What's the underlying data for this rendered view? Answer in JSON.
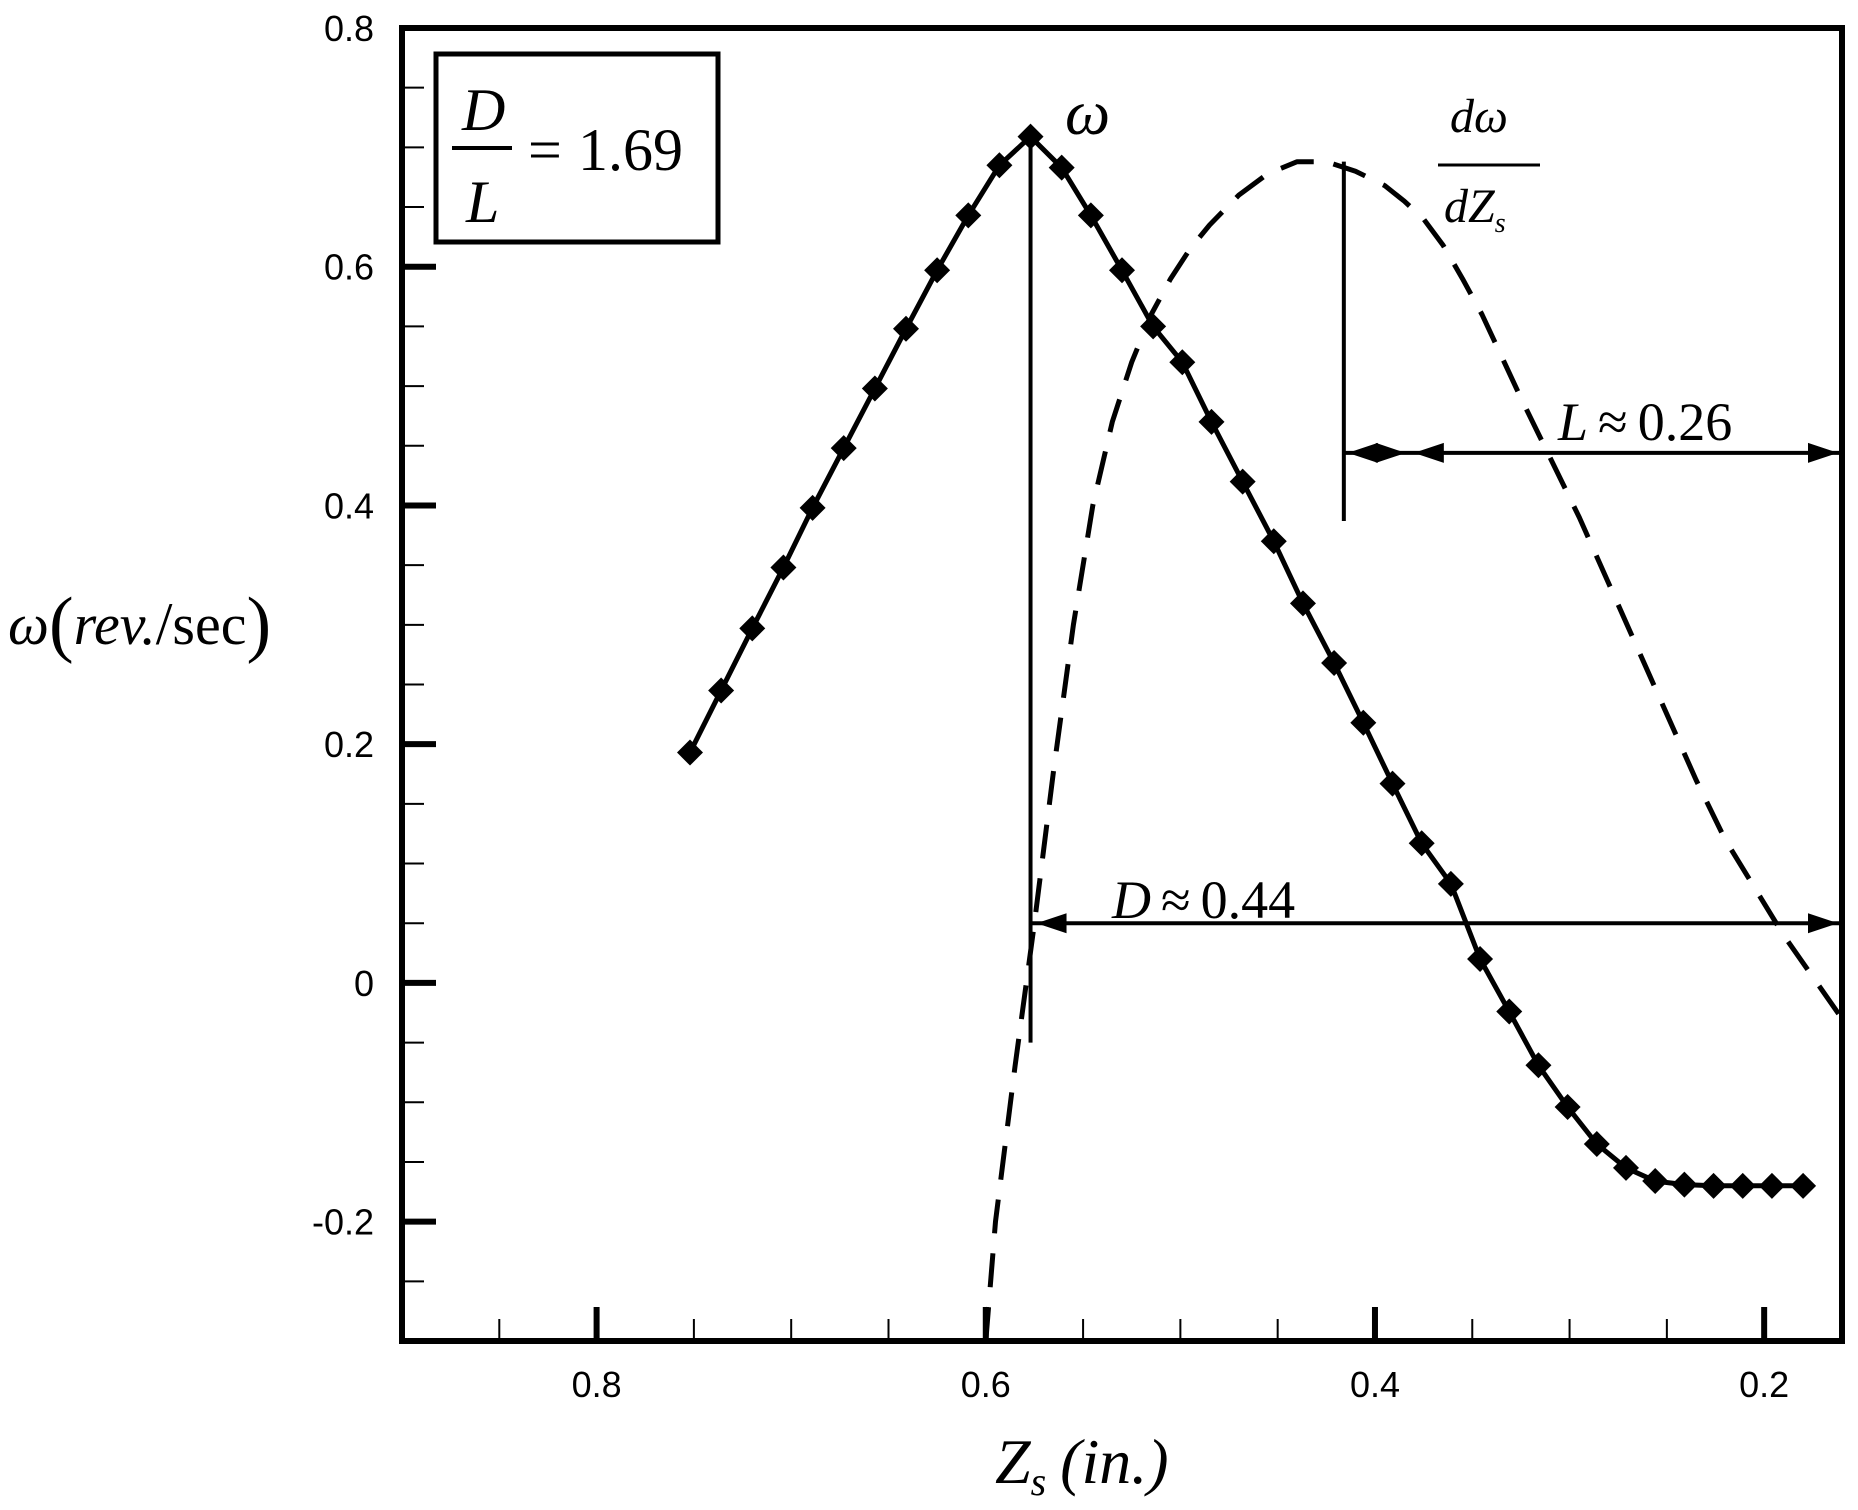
{
  "chart_data": {
    "type": "line",
    "xlabel": {
      "main": "Z",
      "sub": "s",
      "unit": "(in.)"
    },
    "ylabel": {
      "symbol": "ω",
      "unit": "rev.",
      "slash": "/",
      "time": "sec"
    },
    "xlim": [
      0.9,
      0.16
    ],
    "ylim": [
      -0.3,
      0.8
    ],
    "x_reversed": true,
    "xticks": [
      0.8,
      0.6,
      0.4,
      0.2
    ],
    "xtick_labels": [
      "0.8",
      "0.6",
      "0.4",
      "0.2"
    ],
    "yticks": [
      0.8,
      0.6,
      0.4,
      0.2,
      0,
      -0.2
    ],
    "ytick_labels": [
      "0.8",
      "0.6",
      "0.4",
      "0.2",
      "0",
      "-0.2"
    ],
    "grid": false,
    "series": [
      {
        "name": "ω",
        "style": "solid-diamond",
        "x": [
          0.752,
          0.736,
          0.72,
          0.704,
          0.689,
          0.673,
          0.657,
          0.641,
          0.625,
          0.609,
          0.593,
          0.577,
          0.561,
          0.546,
          0.53,
          0.514,
          0.499,
          0.484,
          0.468,
          0.452,
          0.437,
          0.421,
          0.406,
          0.391,
          0.376,
          0.361,
          0.346,
          0.331,
          0.316,
          0.301,
          0.286,
          0.271,
          0.256,
          0.241,
          0.226,
          0.211,
          0.196,
          0.18
        ],
        "y": [
          0.193,
          0.245,
          0.297,
          0.348,
          0.398,
          0.448,
          0.498,
          0.548,
          0.597,
          0.643,
          0.685,
          0.709,
          0.683,
          0.643,
          0.597,
          0.55,
          0.52,
          0.47,
          0.42,
          0.37,
          0.318,
          0.268,
          0.218,
          0.167,
          0.117,
          0.083,
          0.02,
          -0.024,
          -0.069,
          -0.104,
          -0.135,
          -0.155,
          -0.166,
          -0.169,
          -0.17,
          -0.17,
          -0.17,
          -0.17
        ]
      },
      {
        "name": "dω/dZs",
        "style": "dashed",
        "x": [
          0.6,
          0.595,
          0.585,
          0.575,
          0.565,
          0.555,
          0.545,
          0.535,
          0.525,
          0.515,
          0.505,
          0.495,
          0.485,
          0.47,
          0.455,
          0.44,
          0.425,
          0.41,
          0.395,
          0.385,
          0.375,
          0.365,
          0.355,
          0.345,
          0.335,
          0.325,
          0.31,
          0.295,
          0.28,
          0.265,
          0.25,
          0.235,
          0.22,
          0.205,
          0.19,
          0.175,
          0.16
        ],
        "y": [
          -0.3,
          -0.2,
          -0.07,
          0.05,
          0.18,
          0.3,
          0.4,
          0.47,
          0.52,
          0.56,
          0.59,
          0.615,
          0.635,
          0.66,
          0.678,
          0.688,
          0.688,
          0.68,
          0.668,
          0.655,
          0.64,
          0.618,
          0.59,
          0.56,
          0.525,
          0.49,
          0.44,
          0.39,
          0.335,
          0.28,
          0.225,
          0.17,
          0.12,
          0.08,
          0.04,
          0.005,
          -0.03
        ]
      }
    ],
    "annotations": {
      "ratio_box": {
        "num": "D",
        "den": "L",
        "eq": "=",
        "value": "1.69"
      },
      "omega_label": "ω",
      "deriv_label": {
        "num": "dω",
        "den_main": "dZ",
        "den_sub": "s"
      },
      "L_label": {
        "var": "L",
        "approx": "≈",
        "value": "0.26"
      },
      "D_label": {
        "var": "D",
        "approx": "≈",
        "value": "0.44"
      },
      "omega_peak_x": 0.577,
      "deriv_peak_x": 0.416,
      "L_arrow_y": 0.444,
      "D_arrow_y": 0.05
    }
  }
}
